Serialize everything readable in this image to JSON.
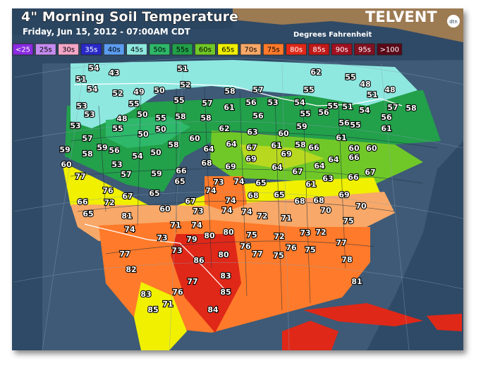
{
  "header": {
    "title": "4\" Morning Soil Temperature",
    "subtitle": "Friday, Jun 15, 2012 - 07:00AM CDT",
    "brand": "TELVENT",
    "logo": "dtn",
    "units": "Degrees Fahrenheit"
  },
  "legend": [
    {
      "label": "<25",
      "color": "#8a2be2",
      "text": "#fff"
    },
    {
      "label": "25s",
      "color": "#c48cf0",
      "text": "#000"
    },
    {
      "label": "30s",
      "color": "#f4a6c8",
      "text": "#000"
    },
    {
      "label": "35s",
      "color": "#2828c8",
      "text": "#fff"
    },
    {
      "label": "40s",
      "color": "#5a9cf0",
      "text": "#000"
    },
    {
      "label": "45s",
      "color": "#8ee8e0",
      "text": "#000"
    },
    {
      "label": "50s",
      "color": "#2eb86a",
      "text": "#000"
    },
    {
      "label": "55s",
      "color": "#22a04a",
      "text": "#000"
    },
    {
      "label": "60s",
      "color": "#70c828",
      "text": "#000"
    },
    {
      "label": "65s",
      "color": "#f0f000",
      "text": "#000"
    },
    {
      "label": "70s",
      "color": "#f8a868",
      "text": "#000"
    },
    {
      "label": "75s",
      "color": "#ff7a2a",
      "text": "#000"
    },
    {
      "label": "80s",
      "color": "#e02818",
      "text": "#fff"
    },
    {
      "label": "85s",
      "color": "#c01818",
      "text": "#fff"
    },
    {
      "label": "90s",
      "color": "#a01020",
      "text": "#fff"
    },
    {
      "label": "95s",
      "color": "#801020",
      "text": "#fff"
    },
    {
      "label": ">100",
      "color": "#5a0818",
      "text": "#fff"
    }
  ],
  "stations": [
    51,
    54,
    43,
    54,
    52,
    49,
    50,
    51,
    52,
    58,
    57,
    55,
    62,
    55,
    48,
    51,
    48,
    53,
    55,
    55,
    57,
    61,
    56,
    53,
    54,
    55,
    55,
    51,
    54,
    57,
    58,
    53,
    48,
    50,
    55,
    58,
    58,
    56,
    59,
    56,
    56,
    56,
    55,
    61,
    53,
    55,
    50,
    50,
    62,
    63,
    60,
    57,
    58,
    60,
    64,
    64,
    67,
    61,
    58,
    66,
    61,
    60,
    60,
    59,
    58,
    59,
    56,
    54,
    50,
    69,
    60,
    53,
    57,
    59,
    66,
    68,
    69,
    69,
    64,
    67,
    64,
    64,
    66,
    67,
    66,
    77,
    65,
    73,
    74,
    65,
    61,
    63,
    74,
    65,
    76,
    67,
    68,
    65,
    69,
    66,
    72,
    67,
    74,
    68,
    68,
    65,
    81,
    60,
    73,
    74,
    74,
    72,
    70,
    70,
    71,
    71,
    74,
    75,
    74,
    80,
    75,
    80,
    79,
    72,
    73,
    73,
    72,
    73,
    76,
    76,
    75,
    77,
    77,
    80,
    77,
    75,
    86,
    78,
    82,
    77,
    83,
    81,
    83,
    76,
    85,
    85,
    71,
    84
  ]
}
